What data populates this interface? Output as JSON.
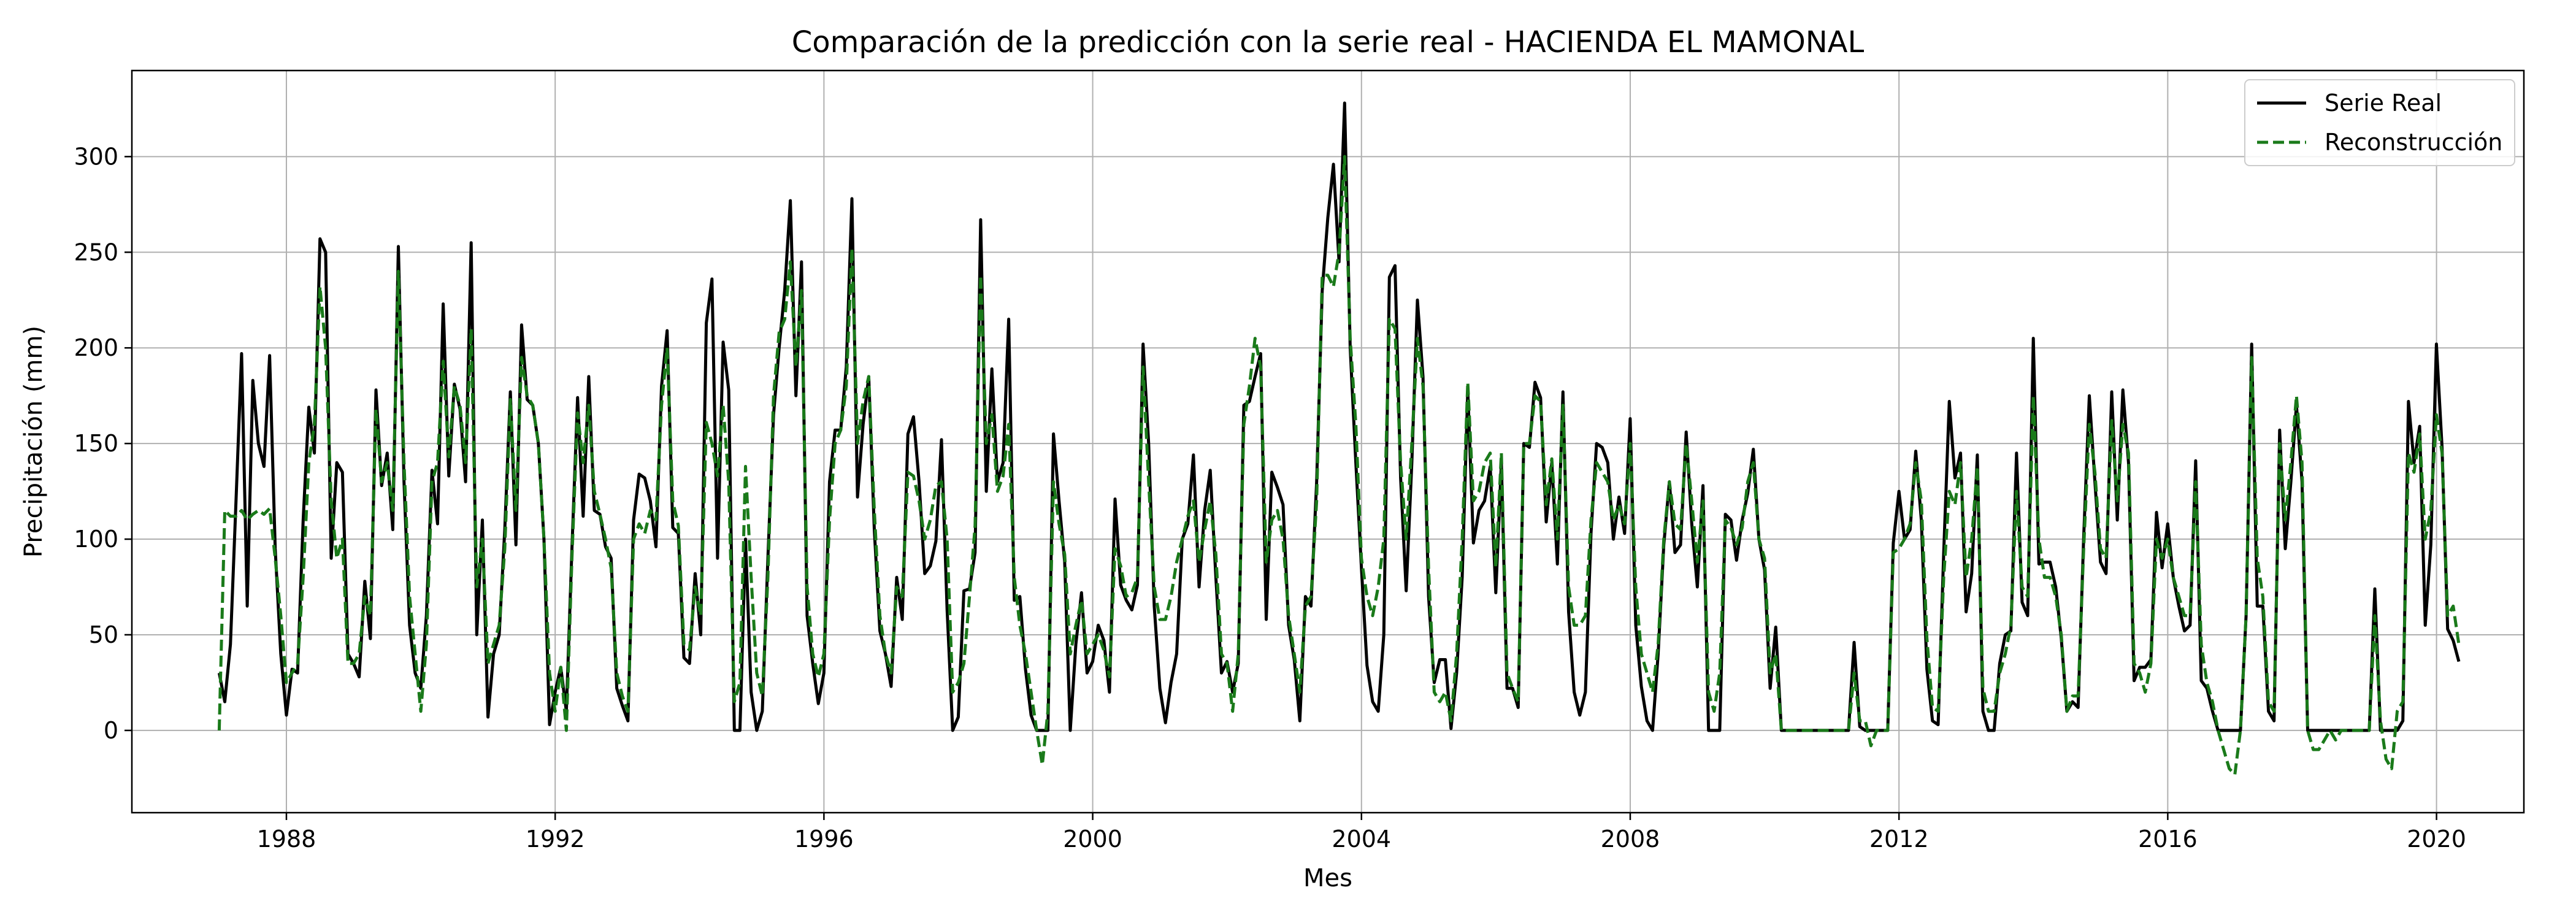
{
  "chart_data": {
    "type": "line",
    "title": "Comparación de la predicción con la serie real - HACIENDA EL MAMONAL",
    "xlabel": "Mes",
    "ylabel": "Precipitación (mm)",
    "xlim": [
      1985.7,
      2021.3
    ],
    "ylim": [
      -43,
      345
    ],
    "grid": true,
    "legend_position": "top-right",
    "x_ticks": [
      1988,
      1992,
      1996,
      2000,
      2004,
      2008,
      2012,
      2016,
      2020
    ],
    "x_tick_labels": [
      "1988",
      "1992",
      "1996",
      "2000",
      "2004",
      "2008",
      "2012",
      "2016",
      "2020"
    ],
    "y_ticks": [
      0,
      50,
      100,
      150,
      200,
      250,
      300
    ],
    "y_tick_labels": [
      "0",
      "50",
      "100",
      "150",
      "200",
      "250",
      "300"
    ],
    "x_start": 1987.0,
    "x_step": 0.08333,
    "series": [
      {
        "name": "Serie Real",
        "color": "#000000",
        "style": "solid",
        "values": [
          30,
          15,
          45,
          120,
          197,
          65,
          183,
          150,
          138,
          196,
          95,
          40,
          8,
          32,
          30,
          110,
          169,
          145,
          257,
          250,
          90,
          140,
          135,
          40,
          35,
          28,
          78,
          48,
          178,
          128,
          145,
          105,
          253,
          130,
          55,
          30,
          22,
          60,
          136,
          108,
          223,
          133,
          181,
          168,
          130,
          255,
          50,
          110,
          7,
          40,
          50,
          105,
          177,
          97,
          212,
          173,
          170,
          150,
          100,
          3,
          20,
          33,
          10,
          95,
          174,
          112,
          185,
          115,
          113,
          96,
          90,
          22,
          13,
          5,
          110,
          134,
          132,
          120,
          96,
          180,
          209,
          106,
          103,
          38,
          35,
          82,
          50,
          213,
          236,
          90,
          203,
          178,
          0,
          0,
          100,
          20,
          0,
          10,
          90,
          165,
          200,
          230,
          277,
          175,
          245,
          60,
          35,
          14,
          30,
          130,
          157,
          157,
          190,
          278,
          122,
          160,
          185,
          105,
          52,
          40,
          23,
          80,
          58,
          155,
          164,
          130,
          82,
          86,
          99,
          152,
          63,
          0,
          7,
          73,
          74,
          93,
          267,
          125,
          189,
          130,
          140,
          215,
          68,
          70,
          32,
          8,
          0,
          0,
          0,
          155,
          120,
          88,
          0,
          45,
          72,
          30,
          36,
          55,
          47,
          20,
          121,
          76,
          68,
          63,
          76,
          202,
          150,
          65,
          22,
          4,
          25,
          40,
          100,
          108,
          144,
          75,
          115,
          136,
          80,
          30,
          36,
          20,
          35,
          170,
          172,
          185,
          197,
          58,
          135,
          127,
          118,
          55,
          37,
          5,
          70,
          65,
          130,
          230,
          268,
          296,
          245,
          328,
          200,
          140,
          85,
          34,
          15,
          10,
          50,
          237,
          243,
          132,
          73,
          140,
          225,
          185,
          70,
          25,
          37,
          37,
          1,
          30,
          80,
          178,
          98,
          115,
          120,
          138,
          72,
          140,
          22,
          22,
          12,
          150,
          148,
          182,
          174,
          109,
          140,
          87,
          177,
          62,
          20,
          8,
          20,
          103,
          150,
          148,
          140,
          100,
          122,
          103,
          163,
          55,
          23,
          5,
          0,
          40,
          97,
          130,
          93,
          97,
          156,
          108,
          75,
          128,
          0,
          0,
          0,
          113,
          110,
          89,
          110,
          124,
          147,
          100,
          84,
          22,
          54,
          0,
          0,
          0,
          0,
          0,
          0,
          0,
          0,
          0,
          0,
          0,
          0,
          0,
          46,
          2,
          0,
          0,
          0,
          0,
          0,
          98,
          125,
          100,
          105,
          146,
          110,
          32,
          5,
          3,
          93,
          172,
          132,
          145,
          62,
          82,
          144,
          10,
          0,
          0,
          35,
          50,
          52,
          145,
          67,
          60,
          205,
          87,
          88,
          88,
          75,
          48,
          10,
          15,
          12,
          101,
          175,
          130,
          88,
          82,
          177,
          110,
          178,
          140,
          26,
          33,
          33,
          37,
          114,
          85,
          108,
          80,
          65,
          52,
          55,
          141,
          26,
          22,
          10,
          0,
          0,
          0,
          0,
          0,
          60,
          202,
          65,
          65,
          10,
          5,
          157,
          95,
          130,
          170,
          130,
          0,
          0,
          0,
          0,
          0,
          0,
          0,
          0,
          0,
          0,
          0,
          0,
          74,
          0,
          0,
          0,
          0,
          5,
          172,
          140,
          159,
          55,
          97,
          202,
          148,
          53,
          47,
          36
        ]
      },
      {
        "name": "Reconstrucción",
        "color": "#1a7a1a",
        "style": "dashed",
        "values": [
          0,
          115,
          112,
          112,
          115,
          110,
          113,
          115,
          113,
          116,
          90,
          60,
          25,
          30,
          35,
          80,
          140,
          160,
          232,
          200,
          120,
          90,
          100,
          35,
          35,
          40,
          70,
          60,
          168,
          130,
          140,
          115,
          240,
          140,
          70,
          40,
          10,
          45,
          130,
          140,
          193,
          143,
          180,
          170,
          140,
          210,
          75,
          100,
          35,
          45,
          55,
          95,
          173,
          115,
          195,
          175,
          170,
          150,
          100,
          30,
          10,
          33,
          0,
          90,
          166,
          140,
          170,
          125,
          113,
          100,
          85,
          30,
          18,
          10,
          100,
          108,
          103,
          115,
          110,
          170,
          200,
          120,
          107,
          45,
          42,
          75,
          60,
          161,
          150,
          133,
          170,
          130,
          15,
          25,
          138,
          80,
          30,
          18,
          80,
          175,
          208,
          215,
          245,
          190,
          230,
          75,
          40,
          28,
          40,
          110,
          150,
          157,
          180,
          252,
          150,
          172,
          185,
          115,
          60,
          40,
          30,
          75,
          70,
          135,
          133,
          120,
          100,
          110,
          128,
          130,
          100,
          20,
          25,
          35,
          70,
          107,
          238,
          150,
          165,
          125,
          133,
          160,
          80,
          55,
          40,
          20,
          0,
          -18,
          10,
          130,
          108,
          92,
          40,
          55,
          68,
          40,
          45,
          50,
          42,
          28,
          95,
          86,
          70,
          72,
          80,
          190,
          130,
          75,
          58,
          58,
          70,
          88,
          100,
          112,
          120,
          88,
          105,
          120,
          92,
          40,
          35,
          10,
          40,
          160,
          180,
          205,
          190,
          88,
          110,
          115,
          100,
          60,
          40,
          20,
          65,
          70,
          120,
          238,
          238,
          232,
          250,
          300,
          205,
          160,
          90,
          70,
          60,
          75,
          100,
          215,
          210,
          140,
          100,
          150,
          205,
          180,
          85,
          20,
          15,
          20,
          5,
          40,
          100,
          182,
          120,
          125,
          140,
          145,
          85,
          145,
          30,
          22,
          15,
          150,
          150,
          175,
          172,
          118,
          142,
          100,
          170,
          75,
          55,
          55,
          60,
          110,
          140,
          135,
          130,
          110,
          118,
          108,
          150,
          75,
          40,
          30,
          20,
          45,
          100,
          130,
          108,
          105,
          150,
          120,
          88,
          120,
          20,
          10,
          30,
          110,
          106,
          97,
          106,
          130,
          140,
          100,
          90,
          30,
          40,
          0,
          0,
          0,
          0,
          0,
          0,
          0,
          0,
          0,
          0,
          0,
          0,
          0,
          30,
          5,
          5,
          -8,
          0,
          0,
          0,
          93,
          95,
          100,
          108,
          140,
          120,
          48,
          12,
          10,
          80,
          125,
          118,
          140,
          80,
          100,
          138,
          22,
          10,
          10,
          30,
          40,
          55,
          125,
          75,
          70,
          175,
          100,
          80,
          80,
          70,
          50,
          10,
          18,
          18,
          95,
          160,
          135,
          95,
          90,
          162,
          120,
          160,
          145,
          35,
          30,
          20,
          35,
          100,
          90,
          100,
          80,
          70,
          60,
          60,
          130,
          45,
          25,
          15,
          0,
          -10,
          -20,
          -23,
          0,
          60,
          195,
          90,
          70,
          15,
          10,
          150,
          110,
          140,
          175,
          140,
          0,
          -10,
          -10,
          -5,
          0,
          -5,
          0,
          0,
          0,
          0,
          0,
          0,
          60,
          5,
          -15,
          -20,
          10,
          15,
          145,
          135,
          155,
          100,
          115,
          165,
          145,
          60,
          65,
          45
        ]
      }
    ]
  }
}
